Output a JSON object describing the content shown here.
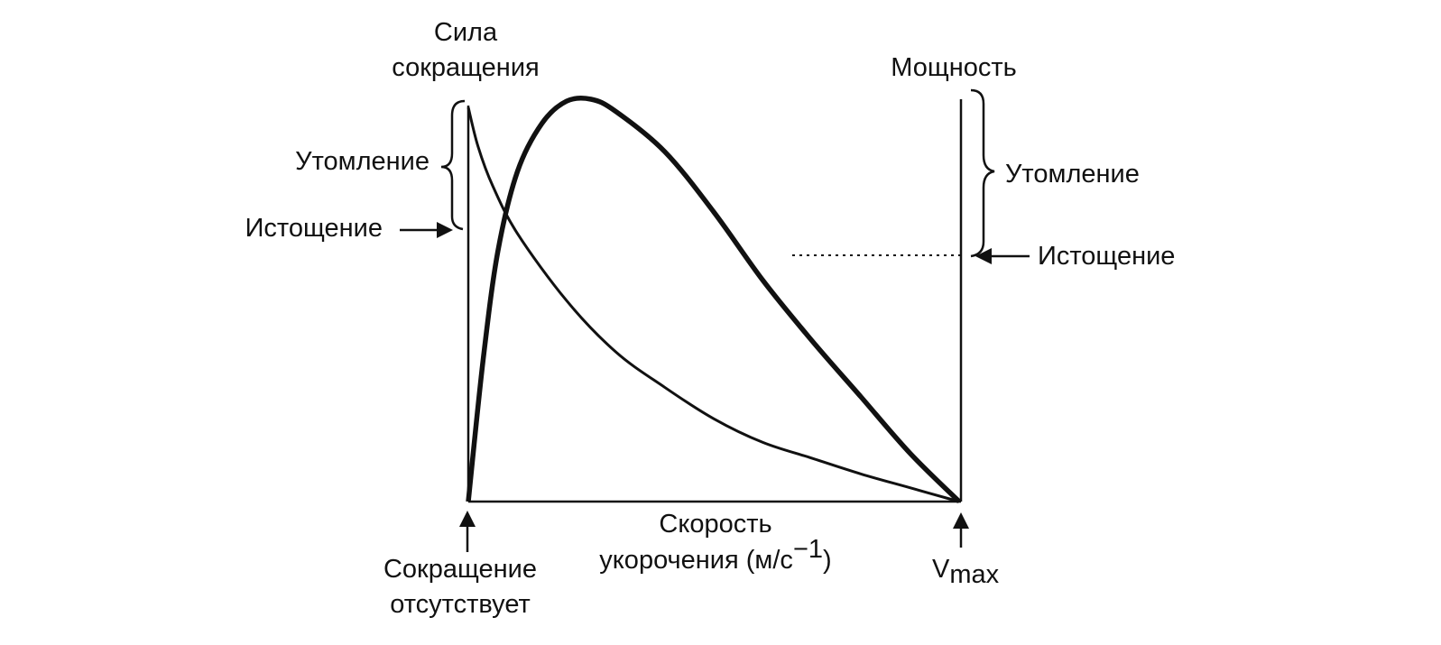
{
  "diagram": {
    "left_axis_label": [
      "Сила",
      "сокращения"
    ],
    "right_axis_label": "Мощность",
    "x_axis_label_line1": "Скорость",
    "x_axis_label_line2_main": "укорочения (м/с",
    "x_axis_label_line2_sup": "−1",
    "x_axis_label_line2_end": ")",
    "fatigue_left": "Утомление",
    "exhaustion_left": "Истощение",
    "fatigue_right": "Утомление",
    "exhaustion_right": "Истощение",
    "no_contraction": [
      "Сокращение",
      "отсутствует"
    ],
    "vmax_main": "V",
    "vmax_sub": "max",
    "line_color": "#111111"
  },
  "chart_data": {
    "type": "line",
    "x_axis": "Скорость укорочения (м/с⁻¹)",
    "left_axis": "Сила сокращения",
    "right_axis": "Мощность",
    "series": [
      {
        "x": [
          0,
          0.02,
          0.05,
          0.1,
          0.2,
          0.3,
          0.4,
          0.5,
          0.6,
          0.7,
          0.8,
          0.9,
          1.0
        ],
        "y": [
          1.0,
          0.9,
          0.8,
          0.68,
          0.51,
          0.38,
          0.29,
          0.21,
          0.15,
          0.11,
          0.07,
          0.035,
          0
        ]
      },
      {
        "x": [
          0,
          0.03,
          0.06,
          0.1,
          0.15,
          0.2,
          0.25,
          0.3,
          0.4,
          0.5,
          0.6,
          0.7,
          0.8,
          0.9,
          1.0
        ],
        "y": [
          0,
          0.35,
          0.62,
          0.82,
          0.94,
          0.995,
          1.0,
          0.97,
          0.87,
          0.72,
          0.55,
          0.4,
          0.26,
          0.12,
          0
        ]
      }
    ]
  }
}
